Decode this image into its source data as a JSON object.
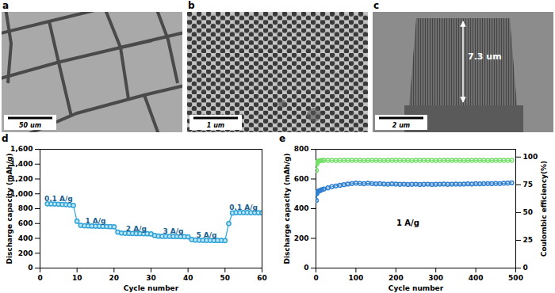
{
  "images": [
    {
      "panel": "a",
      "scale_bar": "50 um"
    },
    {
      "panel": "b",
      "scale_bar": "1 um"
    },
    {
      "panel": "c",
      "scale_bar": "2 um",
      "annotation": "7.3 um"
    }
  ],
  "chart_data": [
    {
      "panel": "d",
      "type": "line",
      "marker": "circle",
      "color": "#2fa3d8",
      "x_label": "Cycle number",
      "y_label": "Discharge capacity (mAh/g)",
      "xlim": [
        0,
        60
      ],
      "xticks": [
        0,
        10,
        20,
        30,
        40,
        50,
        60
      ],
      "ylim": [
        0,
        1600
      ],
      "yticks": [
        0,
        200,
        400,
        600,
        800,
        1000,
        1200,
        1400,
        1600
      ],
      "x": [
        2,
        3,
        4,
        5,
        6,
        7,
        8,
        9,
        10,
        11,
        12,
        13,
        14,
        15,
        16,
        17,
        18,
        19,
        20,
        21,
        22,
        23,
        24,
        25,
        26,
        27,
        28,
        29,
        30,
        31,
        32,
        33,
        34,
        35,
        36,
        37,
        38,
        39,
        40,
        41,
        42,
        43,
        44,
        45,
        46,
        47,
        48,
        49,
        50,
        51,
        52,
        53,
        54,
        55,
        56,
        57,
        58,
        59,
        60
      ],
      "values": [
        866,
        865,
        863,
        861,
        858,
        855,
        850,
        843,
        630,
        575,
        570,
        568,
        566,
        565,
        563,
        562,
        560,
        558,
        556,
        485,
        472,
        469,
        467,
        466,
        465,
        464,
        463,
        462,
        460,
        438,
        430,
        428,
        427,
        426,
        425,
        424,
        423,
        422,
        421,
        385,
        377,
        375,
        374,
        373,
        373,
        372,
        372,
        371,
        370,
        600,
        742,
        748,
        748,
        747,
        747,
        746,
        746,
        745,
        745
      ],
      "annotations": [
        {
          "text": "0.1 A/g",
          "x": 5,
          "y": 930
        },
        {
          "text": "1 A/g",
          "x": 15,
          "y": 630
        },
        {
          "text": "2 A/g",
          "x": 26,
          "y": 530
        },
        {
          "text": "3 A/g",
          "x": 36,
          "y": 490
        },
        {
          "text": "5 A/g",
          "x": 45,
          "y": 440
        },
        {
          "text": "0.1 A/g",
          "x": 55,
          "y": 815
        }
      ]
    },
    {
      "panel": "e",
      "type": "line",
      "marker": "circle",
      "x_label": "Cycle number",
      "y_label": "Discharge capacity (mAh/g)",
      "y2_label": "Coulombic efficiency(%)",
      "xlim": [
        0,
        500
      ],
      "xticks": [
        0,
        100,
        200,
        300,
        400,
        500
      ],
      "ylim": [
        0,
        800
      ],
      "yticks": [
        0,
        200,
        400,
        600,
        800
      ],
      "y2lim": [
        0,
        107
      ],
      "y2ticks": [
        0,
        25,
        50,
        75,
        100
      ],
      "x": [
        1,
        2,
        3,
        5,
        8,
        10,
        15,
        20,
        30,
        40,
        50,
        60,
        70,
        80,
        90,
        100,
        110,
        120,
        130,
        140,
        150,
        160,
        170,
        180,
        190,
        200,
        210,
        220,
        230,
        240,
        250,
        260,
        270,
        280,
        290,
        300,
        310,
        320,
        330,
        340,
        350,
        360,
        370,
        380,
        390,
        400,
        410,
        420,
        430,
        440,
        450,
        460,
        470,
        480,
        490
      ],
      "series": [
        {
          "axis": "y",
          "color": "#2e7fd0",
          "values": [
            455,
            500,
            510,
            515,
            520,
            522,
            528,
            532,
            540,
            548,
            553,
            558,
            562,
            566,
            569,
            572,
            570,
            568,
            571,
            569,
            567,
            568,
            566,
            565,
            567,
            566,
            564,
            565,
            563,
            564,
            565,
            563,
            564,
            565,
            563,
            564,
            565,
            566,
            564,
            565,
            566,
            565,
            566,
            567,
            566,
            568,
            567,
            568,
            569,
            568,
            570,
            569,
            571,
            572,
            574
          ]
        },
        {
          "axis": "y2",
          "color": "#74e06a",
          "values": [
            88,
            93.5,
            95,
            96,
            96.5,
            96.8,
            97,
            97,
            97.1,
            97,
            96.9,
            97,
            97.1,
            97,
            97,
            97.1,
            97,
            96.9,
            97,
            97.1,
            97,
            97,
            96.9,
            97,
            97.1,
            97,
            97,
            97.1,
            97,
            96.9,
            97,
            97,
            97.1,
            97,
            97,
            96.9,
            97,
            97.1,
            97,
            97,
            97.1,
            97,
            96.9,
            97,
            97,
            97.1,
            97,
            97,
            96.9,
            97,
            97.1,
            97,
            97,
            97.1,
            97
          ]
        }
      ],
      "annotations": [
        {
          "text": "1 A/g",
          "x": 230,
          "y": 300
        }
      ]
    }
  ]
}
